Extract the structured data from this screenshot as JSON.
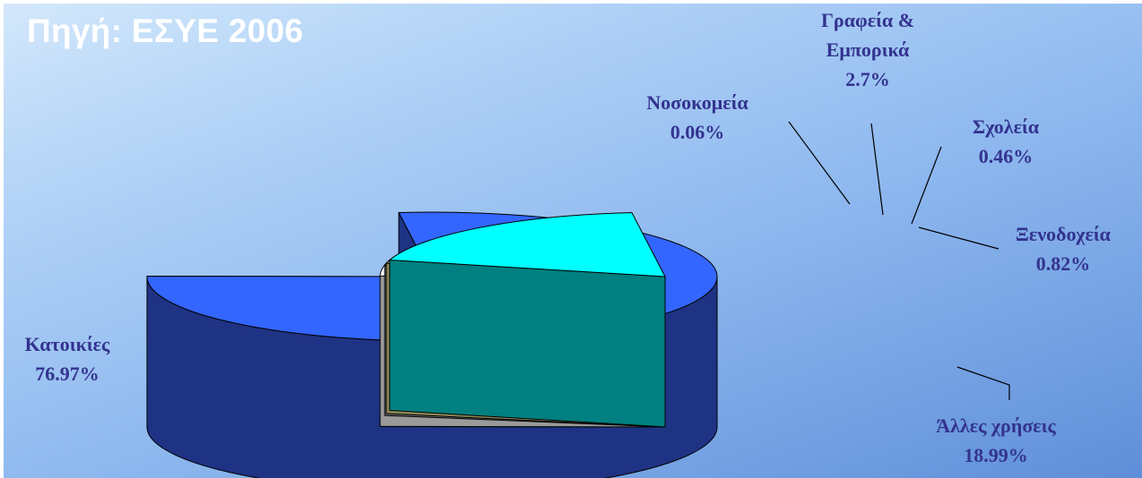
{
  "header": {
    "source": "Πηγή: ΕΣΥΕ 2006"
  },
  "chart_data": {
    "type": "pie",
    "title": "",
    "exploded_3d": true,
    "slices": [
      {
        "label": "Κατοικίες",
        "value": 76.97,
        "value_label": "76.97%",
        "color": "#3366ff",
        "side_color": "#1f3384"
      },
      {
        "label": "Νοσοκομεία",
        "value": 0.06,
        "value_label": "0.06%",
        "color": "#7a2a3a",
        "side_color": "#5a1a28"
      },
      {
        "label": "Γραφεία & Εμπορικά",
        "label_lines": [
          "Γραφεία &",
          "Εμπορικά"
        ],
        "value": 2.7,
        "value_label": "2.7%",
        "color": "#ffffff",
        "side_color": "#9a9a9a"
      },
      {
        "label": "Σχολεία",
        "value": 0.46,
        "value_label": "0.46%",
        "color": "#9c9c9c",
        "side_color": "#6e6e6e"
      },
      {
        "label": "Ξενοδοχεία",
        "value": 0.82,
        "value_label": "0.82%",
        "color": "#bdbb7c",
        "side_color": "#8a8756"
      },
      {
        "label": "Άλλες χρήσεις",
        "value": 18.99,
        "value_label": "18.99%",
        "color": "#00ffff",
        "side_color": "#008080"
      }
    ]
  }
}
